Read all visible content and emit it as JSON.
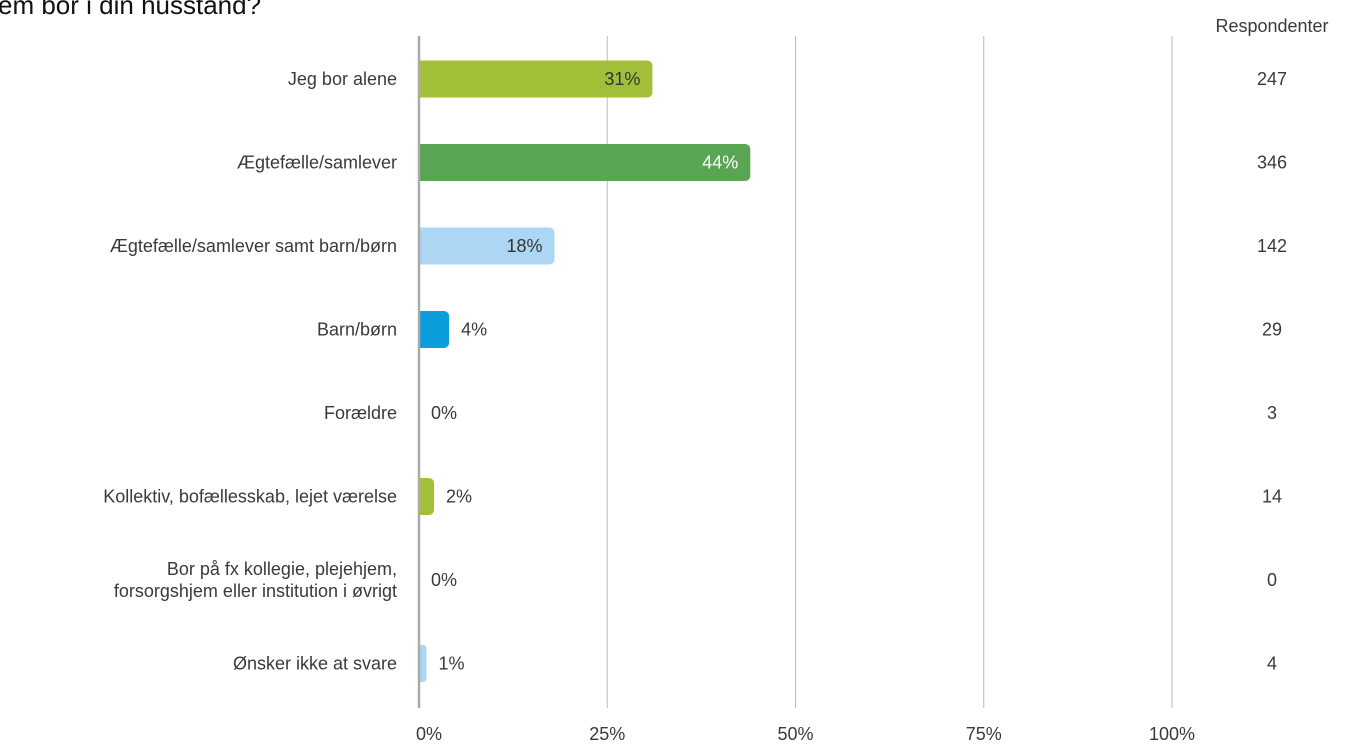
{
  "chart_data": {
    "type": "bar",
    "orientation": "horizontal",
    "title": "em bor i din husstand?",
    "categories": [
      "Jeg bor alene",
      "Ægtefælle/samlever",
      "Ægtefælle/samlever samt barn/børn",
      "Barn/børn",
      "Forældre",
      "Kollektiv, bofællesskab, lejet værelse",
      "Bor på fx kollegie, plejehjem, forsorgshjem eller institution i øvrigt",
      "Ønsker ikke at svare"
    ],
    "category_lines": [
      [
        "Jeg bor alene"
      ],
      [
        "Ægtefælle/samlever"
      ],
      [
        "Ægtefælle/samlever samt barn/børn"
      ],
      [
        "Barn/børn"
      ],
      [
        "Forældre"
      ],
      [
        "Kollektiv, bofællesskab, lejet værelse"
      ],
      [
        "Bor på fx kollegie, plejehjem,",
        "forsorgshjem eller institution i øvrigt"
      ],
      [
        "Ønsker ikke at svare"
      ]
    ],
    "values": [
      31,
      44,
      18,
      4,
      0,
      2,
      0,
      1
    ],
    "value_labels": [
      "31%",
      "44%",
      "18%",
      "4%",
      "0%",
      "2%",
      "0%",
      "1%"
    ],
    "colors": [
      "#a2c037",
      "#5aa553",
      "#acd6f4",
      "#0b9ddc",
      "#acd6f4",
      "#a2c037",
      "#5aa553",
      "#acd6f4"
    ],
    "label_inside": [
      true,
      true,
      true,
      false,
      false,
      false,
      false,
      false
    ],
    "label_colors": [
      "#333333",
      "#ffffff",
      "#333333",
      "#3a3a3a",
      "#3a3a3a",
      "#3a3a3a",
      "#3a3a3a",
      "#3a3a3a"
    ],
    "respondents_header": "Respondenter",
    "respondents": [
      "247",
      "346",
      "142",
      "29",
      "3",
      "14",
      "0",
      "4"
    ],
    "xlim": [
      0,
      100
    ],
    "xticks": [
      0,
      25,
      50,
      75,
      100
    ],
    "xtick_labels": [
      "0%",
      "25%",
      "50%",
      "75%",
      "100%"
    ],
    "grid": true,
    "axis_color": "#aaaaaa",
    "grid_color": "#bbbbbb"
  }
}
